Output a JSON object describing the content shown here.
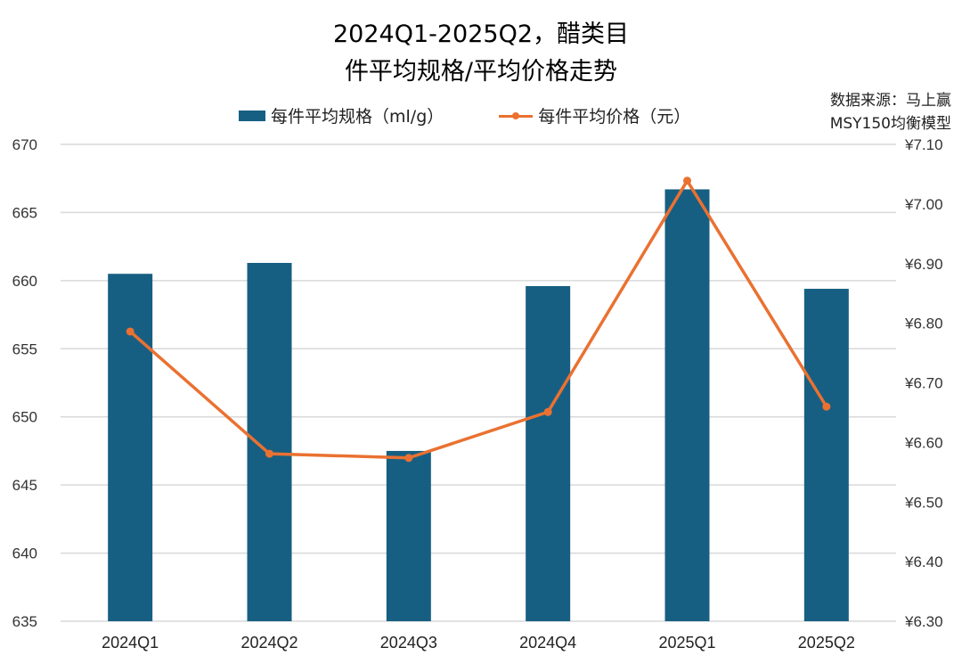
{
  "title_line1": "2024Q1-2025Q2，醋类目",
  "title_line2": "件平均规格/平均价格走势",
  "source_line1": "数据来源：马上赢",
  "source_line2": "MSY150均衡模型",
  "colors": {
    "bar": "#175f82",
    "line": "#ea7131",
    "grid": "#d9d9d9"
  },
  "chart_data": {
    "type": "bar+line",
    "categories": [
      "2024Q1",
      "2024Q2",
      "2024Q3",
      "2024Q4",
      "2025Q1",
      "2025Q2"
    ],
    "series": [
      {
        "name": "每件平均规格（ml/g）",
        "type": "bar",
        "axis": "left",
        "values": [
          660.5,
          661.3,
          647.5,
          659.6,
          666.7,
          659.4
        ]
      },
      {
        "name": "每件平均价格（元）",
        "type": "line",
        "axis": "right",
        "values": [
          6.786,
          6.581,
          6.574,
          6.651,
          7.039,
          6.66
        ]
      }
    ],
    "y_left": {
      "range": [
        635,
        670
      ],
      "ticks": [
        "635",
        "640",
        "645",
        "650",
        "655",
        "660",
        "665",
        "670"
      ]
    },
    "y_right": {
      "range": [
        6.3,
        7.1
      ],
      "ticks": [
        "¥6.30",
        "¥6.40",
        "¥6.50",
        "¥6.60",
        "¥6.70",
        "¥6.80",
        "¥6.90",
        "¥7.00",
        "¥7.10"
      ]
    },
    "grid": true,
    "legend": "top"
  }
}
